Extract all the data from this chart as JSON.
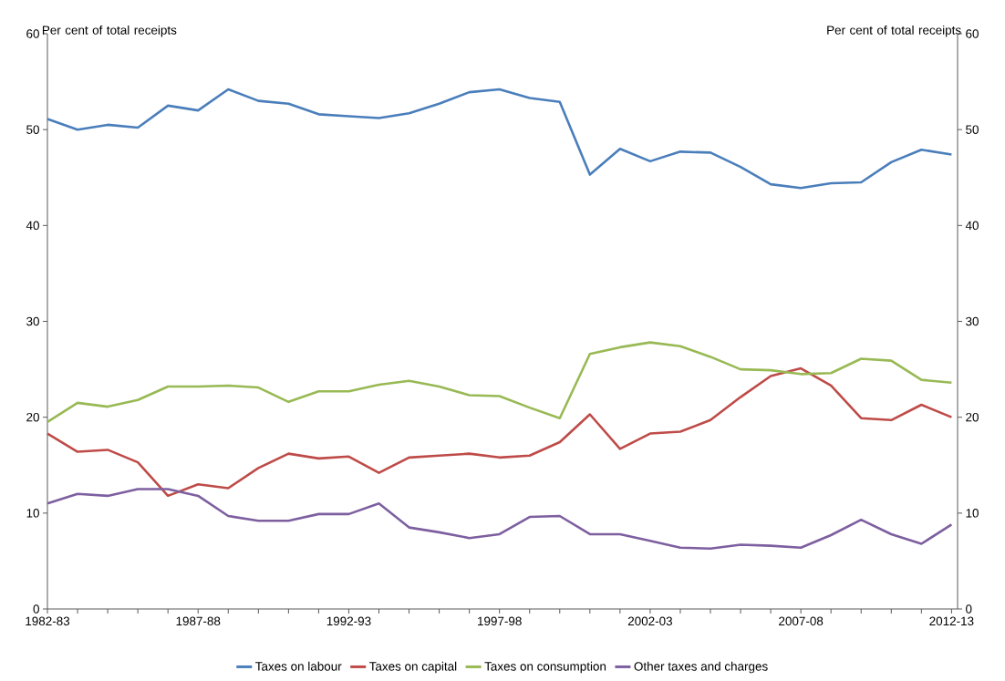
{
  "chart_data": {
    "type": "line",
    "ylabel": "Per cent of total receipts",
    "y2label": "Per cent of total receipts",
    "categories": [
      "1982-83",
      null,
      null,
      null,
      null,
      "1987-88",
      null,
      null,
      null,
      null,
      "1992-93",
      null,
      null,
      null,
      null,
      "1997-98",
      null,
      null,
      null,
      null,
      "2002-03",
      null,
      null,
      null,
      null,
      "2007-08",
      null,
      null,
      null,
      null,
      "2012-13"
    ],
    "series": [
      {
        "name": "Taxes on labour",
        "color": "#4a7ebb",
        "values": [
          51.1,
          50.0,
          50.5,
          50.2,
          52.5,
          52.0,
          54.2,
          53.0,
          52.7,
          51.6,
          51.4,
          51.2,
          51.7,
          52.7,
          53.9,
          54.2,
          53.3,
          52.9,
          45.3,
          48.0,
          46.7,
          47.7,
          47.6,
          46.1,
          44.3,
          43.9,
          44.4,
          44.5,
          46.6,
          47.9,
          47.4
        ]
      },
      {
        "name": "Taxes on capital",
        "color": "#be4b48",
        "values": [
          18.3,
          16.4,
          16.6,
          15.3,
          11.8,
          13.0,
          12.6,
          14.7,
          16.2,
          15.7,
          15.9,
          14.2,
          15.8,
          16.0,
          16.2,
          15.8,
          16.0,
          17.4,
          20.3,
          16.7,
          18.3,
          18.5,
          19.7,
          22.1,
          24.3,
          25.1,
          23.3,
          19.9,
          19.7,
          21.3,
          20.0
        ]
      },
      {
        "name": "Taxes on consumption",
        "color": "#98b954",
        "values": [
          19.5,
          21.5,
          21.1,
          21.8,
          23.2,
          23.2,
          23.3,
          23.1,
          21.6,
          22.7,
          22.7,
          23.4,
          23.8,
          23.2,
          22.3,
          22.2,
          21.0,
          19.9,
          26.6,
          27.3,
          27.8,
          27.4,
          26.3,
          25.0,
          24.9,
          24.5,
          24.6,
          26.1,
          25.9,
          23.9,
          23.6
        ]
      },
      {
        "name": "Other taxes and charges",
        "color": "#7d5fa0",
        "values": [
          11.0,
          12.0,
          11.8,
          12.5,
          12.5,
          11.8,
          9.7,
          9.2,
          9.2,
          9.9,
          9.9,
          11.0,
          8.5,
          8.0,
          7.4,
          7.8,
          9.6,
          9.7,
          7.8,
          7.8,
          7.1,
          6.4,
          6.3,
          6.7,
          6.6,
          6.4,
          7.7,
          9.3,
          7.8,
          6.8,
          8.8
        ]
      }
    ],
    "ylim": [
      0,
      60
    ],
    "yticks": [
      0,
      10,
      20,
      30,
      40,
      50,
      60
    ],
    "y2lim": [
      0,
      60
    ],
    "y2ticks": [
      0,
      10,
      20,
      30,
      40,
      50,
      60
    ],
    "legend": "bottom",
    "grid": false,
    "marker": "none",
    "line_style": "solid"
  }
}
